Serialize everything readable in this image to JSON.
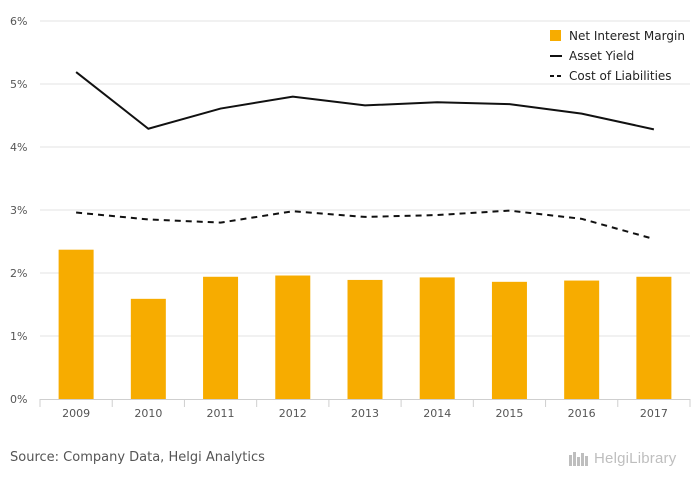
{
  "chart_data": {
    "type": "bar",
    "categories": [
      "2009",
      "2010",
      "2011",
      "2012",
      "2013",
      "2014",
      "2015",
      "2016",
      "2017"
    ],
    "series": [
      {
        "name": "Net Interest Margin",
        "kind": "bar",
        "color": "#f7ac00",
        "values": [
          2.37,
          1.59,
          1.94,
          1.96,
          1.89,
          1.93,
          1.86,
          1.88,
          1.94
        ]
      },
      {
        "name": "Asset Yield",
        "kind": "line",
        "style": "solid",
        "color": "#111111",
        "values": [
          5.19,
          4.29,
          4.61,
          4.8,
          4.66,
          4.71,
          4.68,
          4.53,
          4.28
        ]
      },
      {
        "name": "Cost of Liabilities",
        "kind": "line",
        "style": "dashed",
        "color": "#111111",
        "values": [
          2.96,
          2.85,
          2.8,
          2.98,
          2.89,
          2.92,
          2.99,
          2.86,
          2.54
        ]
      }
    ],
    "yticks": [
      "0%",
      "1%",
      "2%",
      "3%",
      "4%",
      "5%",
      "6%"
    ],
    "ylim": [
      0,
      6
    ],
    "grid": true,
    "legend_position": "top-right"
  },
  "footer": {
    "source": "Source: Company Data, Helgi Analytics",
    "logo_text": "HelgiLibrary"
  }
}
